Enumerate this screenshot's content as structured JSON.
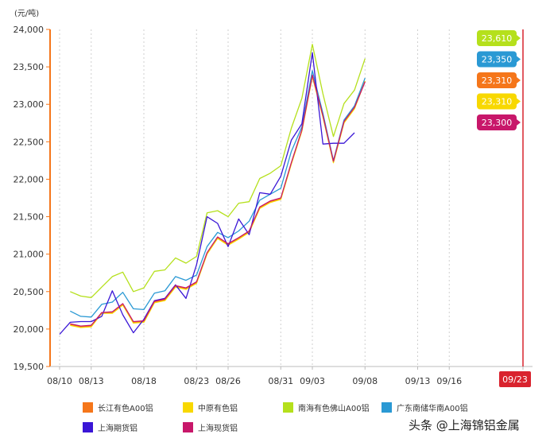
{
  "unit_label": "(元/吨)",
  "watermark": "头条 @上海锦铝金属",
  "chart_data": {
    "type": "line",
    "x": [
      "08/10",
      "08/11",
      "08/12",
      "08/13",
      "08/14",
      "08/15",
      "08/16",
      "08/17",
      "08/18",
      "08/19",
      "08/20",
      "08/21",
      "08/22",
      "08/23",
      "08/24",
      "08/25",
      "08/26",
      "08/27",
      "08/28",
      "08/29",
      "08/30",
      "08/31",
      "09/01",
      "09/02",
      "09/03",
      "09/04",
      "09/05",
      "09/06",
      "09/07",
      "09/08",
      "09/09",
      "09/10",
      "09/11",
      "09/12",
      "09/13",
      "09/14",
      "09/15",
      "09/16",
      "09/17",
      "09/18",
      "09/19",
      "09/20",
      "09/21",
      "09/22",
      "09/23"
    ],
    "xticks": [
      "08/10",
      "08/13",
      "08/18",
      "08/23",
      "08/26",
      "08/31",
      "09/03",
      "09/08",
      "09/13",
      "09/16",
      "09/23"
    ],
    "ylim": [
      19500,
      24000
    ],
    "yticks": [
      19500,
      20000,
      20500,
      21000,
      21500,
      22000,
      22500,
      23000,
      23500,
      24000
    ],
    "ytick_labels": [
      "19,500",
      "20,000",
      "20,500",
      "21,000",
      "21,500",
      "22,000",
      "22,500",
      "23,000",
      "23,500",
      "24,000"
    ],
    "highlight_x": "09/23",
    "series": [
      {
        "name": "长江有色A00铝",
        "color": "#f5761a",
        "points": [
          [
            "08/11",
            20060
          ],
          [
            "08/12",
            20030
          ],
          [
            "08/13",
            20040
          ],
          [
            "08/14",
            20220
          ],
          [
            "08/15",
            20220
          ],
          [
            "08/16",
            20330
          ],
          [
            "08/17",
            20090
          ],
          [
            "08/18",
            20100
          ],
          [
            "08/19",
            20360
          ],
          [
            "08/20",
            20390
          ],
          [
            "08/21",
            20570
          ],
          [
            "08/22",
            20540
          ],
          [
            "08/23",
            20620
          ],
          [
            "08/24",
            21010
          ],
          [
            "08/25",
            21220
          ],
          [
            "08/26",
            21130
          ],
          [
            "08/27",
            21210
          ],
          [
            "08/28",
            21300
          ],
          [
            "08/29",
            21620
          ],
          [
            "08/30",
            21700
          ],
          [
            "08/31",
            21740
          ],
          [
            "09/01",
            22210
          ],
          [
            "09/02",
            22650
          ],
          [
            "09/03",
            23380
          ],
          [
            "09/04",
            22840
          ],
          [
            "09/05",
            22230
          ],
          [
            "09/06",
            22760
          ],
          [
            "09/07",
            22950
          ],
          [
            "09/08",
            23310
          ]
        ]
      },
      {
        "name": "中原有色铝",
        "color": "#f8d800",
        "points": [
          [
            "08/11",
            20050
          ],
          [
            "08/12",
            20020
          ],
          [
            "08/13",
            20030
          ],
          [
            "08/14",
            20210
          ],
          [
            "08/15",
            20210
          ],
          [
            "08/16",
            20320
          ],
          [
            "08/17",
            20080
          ],
          [
            "08/18",
            20090
          ],
          [
            "08/19",
            20350
          ],
          [
            "08/20",
            20380
          ],
          [
            "08/21",
            20560
          ],
          [
            "08/22",
            20530
          ],
          [
            "08/23",
            20610
          ],
          [
            "08/24",
            21000
          ],
          [
            "08/25",
            21210
          ],
          [
            "08/26",
            21120
          ],
          [
            "08/27",
            21200
          ],
          [
            "08/28",
            21290
          ],
          [
            "08/29",
            21610
          ],
          [
            "08/30",
            21690
          ],
          [
            "08/31",
            21730
          ],
          [
            "09/01",
            22200
          ],
          [
            "09/02",
            22640
          ],
          [
            "09/03",
            23370
          ],
          [
            "09/04",
            22830
          ],
          [
            "09/05",
            22220
          ],
          [
            "09/06",
            22750
          ],
          [
            "09/07",
            22940
          ],
          [
            "09/08",
            23310
          ]
        ]
      },
      {
        "name": "南海有色佛山A00铝",
        "color": "#b5e01c",
        "points": [
          [
            "08/11",
            20500
          ],
          [
            "08/12",
            20440
          ],
          [
            "08/13",
            20420
          ],
          [
            "08/14",
            20560
          ],
          [
            "08/15",
            20700
          ],
          [
            "08/16",
            20760
          ],
          [
            "08/17",
            20500
          ],
          [
            "08/18",
            20550
          ],
          [
            "08/19",
            20770
          ],
          [
            "08/20",
            20790
          ],
          [
            "08/21",
            20950
          ],
          [
            "08/22",
            20880
          ],
          [
            "08/23",
            20970
          ],
          [
            "08/24",
            21550
          ],
          [
            "08/25",
            21580
          ],
          [
            "08/26",
            21500
          ],
          [
            "08/27",
            21680
          ],
          [
            "08/28",
            21700
          ],
          [
            "08/29",
            22010
          ],
          [
            "08/30",
            22080
          ],
          [
            "08/31",
            22180
          ],
          [
            "09/01",
            22680
          ],
          [
            "09/02",
            23080
          ],
          [
            "09/03",
            23800
          ],
          [
            "09/04",
            23140
          ],
          [
            "09/05",
            22570
          ],
          [
            "09/06",
            23010
          ],
          [
            "09/07",
            23190
          ],
          [
            "09/08",
            23610
          ]
        ]
      },
      {
        "name": "广东南储华南A00铝",
        "color": "#2a99d4",
        "points": [
          [
            "08/11",
            20240
          ],
          [
            "08/12",
            20170
          ],
          [
            "08/13",
            20160
          ],
          [
            "08/14",
            20330
          ],
          [
            "08/15",
            20360
          ],
          [
            "08/16",
            20490
          ],
          [
            "08/17",
            20270
          ],
          [
            "08/18",
            20260
          ],
          [
            "08/19",
            20480
          ],
          [
            "08/20",
            20510
          ],
          [
            "08/21",
            20700
          ],
          [
            "08/22",
            20650
          ],
          [
            "08/23",
            20720
          ],
          [
            "08/24",
            21100
          ],
          [
            "08/25",
            21290
          ],
          [
            "08/26",
            21220
          ],
          [
            "08/27",
            21310
          ],
          [
            "08/28",
            21440
          ],
          [
            "08/29",
            21720
          ],
          [
            "08/30",
            21800
          ],
          [
            "08/31",
            21880
          ],
          [
            "09/01",
            22370
          ],
          [
            "09/02",
            22700
          ],
          [
            "09/03",
            23450
          ],
          [
            "09/04",
            22880
          ],
          [
            "09/05",
            22250
          ],
          [
            "09/06",
            22790
          ],
          [
            "09/07",
            22980
          ],
          [
            "09/08",
            23350
          ]
        ]
      },
      {
        "name": "上海期货铝",
        "color": "#3a16d6",
        "points": [
          [
            "08/10",
            19930
          ],
          [
            "08/11",
            20090
          ],
          [
            "08/12",
            20100
          ],
          [
            "08/13",
            20100
          ],
          [
            "08/14",
            20170
          ],
          [
            "08/15",
            20510
          ],
          [
            "08/16",
            20190
          ],
          [
            "08/17",
            19950
          ],
          [
            "08/18",
            20130
          ],
          [
            "08/19",
            20380
          ],
          [
            "08/20",
            20410
          ],
          [
            "08/21",
            20590
          ],
          [
            "08/22",
            20410
          ],
          [
            "08/23",
            20860
          ],
          [
            "08/24",
            21500
          ],
          [
            "08/25",
            21410
          ],
          [
            "08/26",
            21100
          ],
          [
            "08/27",
            21470
          ],
          [
            "08/28",
            21260
          ],
          [
            "08/29",
            21820
          ],
          [
            "08/30",
            21800
          ],
          [
            "08/31",
            22040
          ],
          [
            "09/01",
            22520
          ],
          [
            "09/02",
            22740
          ],
          [
            "09/03",
            23690
          ],
          [
            "09/04",
            22470
          ],
          [
            "09/05",
            22480
          ],
          [
            "09/06",
            22480
          ],
          [
            "09/07",
            22620
          ]
        ]
      },
      {
        "name": "上海现货铝",
        "color": "#c8176a",
        "points": [
          [
            "08/11",
            20070
          ],
          [
            "08/12",
            20040
          ],
          [
            "08/13",
            20050
          ],
          [
            "08/14",
            20220
          ],
          [
            "08/15",
            20230
          ],
          [
            "08/16",
            20340
          ],
          [
            "08/17",
            20100
          ],
          [
            "08/18",
            20110
          ],
          [
            "08/19",
            20370
          ],
          [
            "08/20",
            20400
          ],
          [
            "08/21",
            20580
          ],
          [
            "08/22",
            20550
          ],
          [
            "08/23",
            20630
          ],
          [
            "08/24",
            21020
          ],
          [
            "08/25",
            21230
          ],
          [
            "08/26",
            21140
          ],
          [
            "08/27",
            21220
          ],
          [
            "08/28",
            21310
          ],
          [
            "08/29",
            21630
          ],
          [
            "08/30",
            21710
          ],
          [
            "08/31",
            21750
          ],
          [
            "09/01",
            22220
          ],
          [
            "09/02",
            22660
          ],
          [
            "09/03",
            23390
          ],
          [
            "09/04",
            22850
          ],
          [
            "09/05",
            22240
          ],
          [
            "09/06",
            22770
          ],
          [
            "09/07",
            22960
          ],
          [
            "09/08",
            23300
          ]
        ]
      }
    ],
    "end_labels": [
      {
        "text": "23,610",
        "color": "#b5e01c"
      },
      {
        "text": "23,350",
        "color": "#2a99d4"
      },
      {
        "text": "23,310",
        "color": "#f5761a"
      },
      {
        "text": "23,310",
        "color": "#f8d800"
      },
      {
        "text": "23,300",
        "color": "#c8176a"
      }
    ]
  }
}
